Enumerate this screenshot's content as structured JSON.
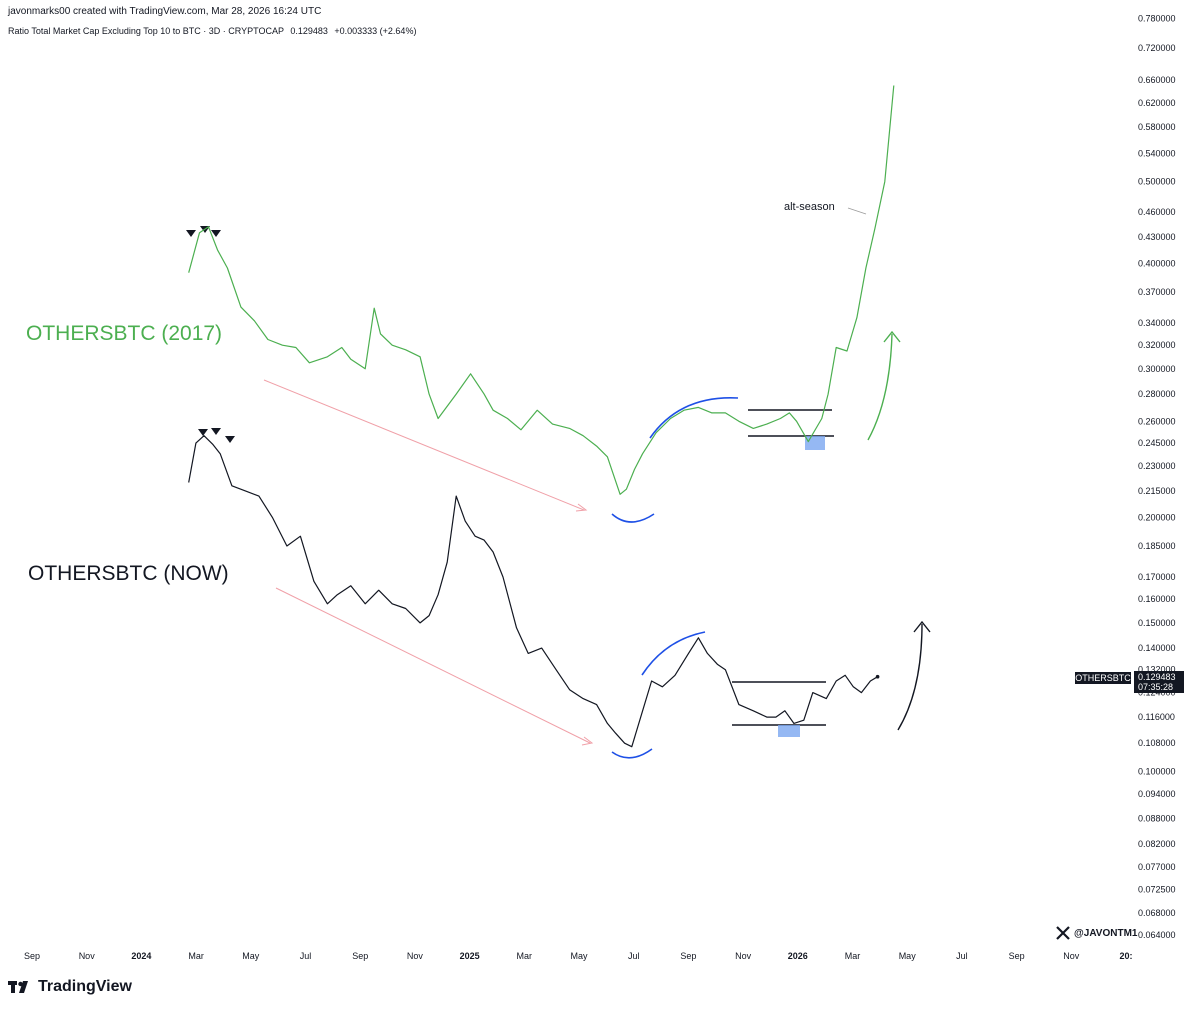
{
  "header": {
    "creator_line": "javonmarks00 created with TradingView.com, Mar 28, 2026 16:24 UTC",
    "symbol_desc": "Ratio Total Market Cap Excluding Top 10 to BTC · 3D · CRYPTOCAP",
    "last_value": "0.129483",
    "change": "+0.003333 (+2.64%)"
  },
  "footer": {
    "brand": "TradingView"
  },
  "watermark": {
    "handle": "@JAVONTM1"
  },
  "colors": {
    "green_series": "#4caf50",
    "black_series": "#131722",
    "trend_arrow": "#f0a0a8",
    "arc": "#1e50e6",
    "box": "#7aa6f0"
  },
  "chart_data": {
    "type": "line",
    "y_scale": "log",
    "ylim": [
      0.0625,
      0.78
    ],
    "y_ticks": [
      "0.064000",
      "0.068000",
      "0.072500",
      "0.077000",
      "0.082000",
      "0.088000",
      "0.094000",
      "0.100000",
      "0.108000",
      "0.116000",
      "0.124000",
      "0.132000",
      "0.140000",
      "0.150000",
      "0.160000",
      "0.170000",
      "0.185000",
      "0.200000",
      "0.215000",
      "0.230000",
      "0.245000",
      "0.260000",
      "0.280000",
      "0.300000",
      "0.320000",
      "0.340000",
      "0.370000",
      "0.400000",
      "0.430000",
      "0.460000",
      "0.500000",
      "0.540000",
      "0.580000",
      "0.620000",
      "0.660000",
      "0.720000",
      "0.780000"
    ],
    "x_ticks": [
      {
        "label": "Sep",
        "bold": false
      },
      {
        "label": "Nov",
        "bold": false
      },
      {
        "label": "2024",
        "bold": true
      },
      {
        "label": "Mar",
        "bold": false
      },
      {
        "label": "May",
        "bold": false
      },
      {
        "label": "Jul",
        "bold": false
      },
      {
        "label": "Sep",
        "bold": false
      },
      {
        "label": "Nov",
        "bold": false
      },
      {
        "label": "2025",
        "bold": true
      },
      {
        "label": "Mar",
        "bold": false
      },
      {
        "label": "May",
        "bold": false
      },
      {
        "label": "Jul",
        "bold": false
      },
      {
        "label": "Sep",
        "bold": false
      },
      {
        "label": "Nov",
        "bold": false
      },
      {
        "label": "2026",
        "bold": true
      },
      {
        "label": "Mar",
        "bold": false
      },
      {
        "label": "May",
        "bold": false
      },
      {
        "label": "Jul",
        "bold": false
      },
      {
        "label": "Sep",
        "bold": false
      },
      {
        "label": "Nov",
        "bold": false
      },
      {
        "label": "20:",
        "bold": true
      }
    ],
    "price_tag": {
      "symbol": "OTHERSBTC",
      "value": "0.129483",
      "countdown": "07:35:28"
    },
    "annotations": {
      "series_2017_label": "OTHERSBTC (2017)",
      "series_now_label": "OTHERSBTC (NOW)",
      "alt_season_label": "alt-season"
    },
    "series": [
      {
        "name": "OTHERSBTC (2017)",
        "x": [
          "2024-02-22",
          "2024-03-05",
          "2024-03-15",
          "2024-03-25",
          "2024-04-05",
          "2024-04-20",
          "2024-05-05",
          "2024-05-20",
          "2024-06-05",
          "2024-06-20",
          "2024-07-05",
          "2024-07-25",
          "2024-08-10",
          "2024-08-20",
          "2024-09-05",
          "2024-09-15",
          "2024-09-22",
          "2024-10-05",
          "2024-10-20",
          "2024-11-05",
          "2024-11-15",
          "2024-11-25",
          "2024-12-15",
          "2024-12-31",
          "2025-01-15",
          "2025-01-25",
          "2025-02-10",
          "2025-02-25",
          "2025-03-15",
          "2025-04-01",
          "2025-04-20",
          "2025-05-05",
          "2025-05-20",
          "2025-06-01",
          "2025-06-15",
          "2025-06-22",
          "2025-07-01",
          "2025-07-10",
          "2025-07-25",
          "2025-08-10",
          "2025-08-25",
          "2025-09-10",
          "2025-09-25",
          "2025-10-10",
          "2025-10-25",
          "2025-11-10",
          "2025-11-25",
          "2025-12-10",
          "2025-12-20",
          "2025-12-28",
          "2026-01-10",
          "2026-01-25",
          "2026-02-01",
          "2026-02-10",
          "2026-02-22",
          "2026-03-05",
          "2026-03-15",
          "2026-03-25",
          "2026-04-05",
          "2026-04-15"
        ],
        "y": [
          0.39,
          0.435,
          0.442,
          0.415,
          0.395,
          0.355,
          0.342,
          0.325,
          0.32,
          0.318,
          0.305,
          0.31,
          0.318,
          0.308,
          0.3,
          0.354,
          0.33,
          0.32,
          0.316,
          0.31,
          0.28,
          0.262,
          0.28,
          0.296,
          0.28,
          0.268,
          0.262,
          0.254,
          0.268,
          0.258,
          0.255,
          0.25,
          0.243,
          0.236,
          0.213,
          0.216,
          0.228,
          0.238,
          0.252,
          0.262,
          0.268,
          0.27,
          0.266,
          0.266,
          0.26,
          0.255,
          0.258,
          0.262,
          0.266,
          0.26,
          0.246,
          0.262,
          0.28,
          0.318,
          0.315,
          0.345,
          0.395,
          0.44,
          0.5,
          0.65
        ]
      },
      {
        "name": "OTHERSBTC (NOW)",
        "x": [
          "2024-02-22",
          "2024-03-01",
          "2024-03-10",
          "2024-03-20",
          "2024-03-28",
          "2024-04-10",
          "2024-04-25",
          "2024-05-10",
          "2024-05-25",
          "2024-06-10",
          "2024-06-25",
          "2024-07-10",
          "2024-07-25",
          "2024-08-05",
          "2024-08-20",
          "2024-09-05",
          "2024-09-20",
          "2024-10-05",
          "2024-10-20",
          "2024-11-05",
          "2024-11-15",
          "2024-11-25",
          "2024-12-05",
          "2024-12-15",
          "2024-12-25",
          "2025-01-05",
          "2025-01-15",
          "2025-01-25",
          "2025-02-05",
          "2025-02-20",
          "2025-03-05",
          "2025-03-20",
          "2025-04-05",
          "2025-04-20",
          "2025-05-05",
          "2025-05-20",
          "2025-06-01",
          "2025-06-10",
          "2025-06-20",
          "2025-06-28",
          "2025-07-10",
          "2025-07-20",
          "2025-08-01",
          "2025-08-15",
          "2025-08-30",
          "2025-09-10",
          "2025-09-20",
          "2025-10-01",
          "2025-10-10",
          "2025-10-25",
          "2025-11-10",
          "2025-11-25",
          "2025-12-05",
          "2025-12-15",
          "2025-12-25",
          "2026-01-05",
          "2026-01-15",
          "2026-01-30",
          "2026-02-10",
          "2026-02-20",
          "2026-03-01",
          "2026-03-10",
          "2026-03-20",
          "2026-03-28"
        ],
        "y": [
          0.22,
          0.245,
          0.25,
          0.244,
          0.238,
          0.218,
          0.215,
          0.212,
          0.2,
          0.185,
          0.19,
          0.168,
          0.158,
          0.162,
          0.166,
          0.158,
          0.164,
          0.158,
          0.156,
          0.15,
          0.153,
          0.162,
          0.177,
          0.212,
          0.198,
          0.19,
          0.188,
          0.182,
          0.17,
          0.148,
          0.138,
          0.14,
          0.132,
          0.125,
          0.122,
          0.12,
          0.114,
          0.111,
          0.108,
          0.107,
          0.118,
          0.128,
          0.126,
          0.13,
          0.138,
          0.144,
          0.138,
          0.134,
          0.132,
          0.12,
          0.118,
          0.116,
          0.116,
          0.118,
          0.114,
          0.115,
          0.124,
          0.122,
          0.128,
          0.13,
          0.126,
          0.124,
          0.128,
          0.1295
        ]
      }
    ]
  }
}
